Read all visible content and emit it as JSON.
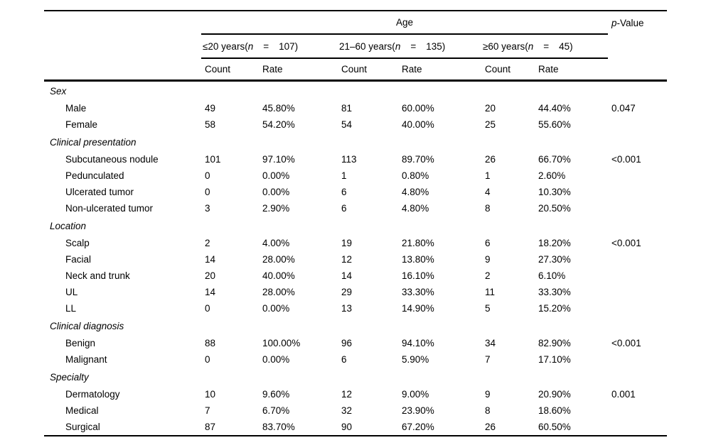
{
  "page": {
    "background": "#ffffff",
    "text_color": "#000000",
    "rule_color": "#000000"
  },
  "table": {
    "header": {
      "age_title": "Age",
      "p_value_italic": "p",
      "p_value_rest": "-Value",
      "age_groups": [
        {
          "pre": "≤20 years(",
          "n": "n",
          "eq": "=",
          "count": "107)"
        },
        {
          "pre": "21–60 years(",
          "n": "n",
          "eq": "=",
          "count": "135)"
        },
        {
          "pre": "≥60 years(",
          "n": "n",
          "eq": "=",
          "count": "45)"
        }
      ],
      "count_label": "Count",
      "rate_label": "Rate"
    },
    "sections": [
      {
        "title": "Sex",
        "rows": [
          {
            "label": "Male",
            "values": [
              "49",
              "45.80%",
              "81",
              "60.00%",
              "20",
              "44.40%"
            ],
            "p": "0.047"
          },
          {
            "label": "Female",
            "values": [
              "58",
              "54.20%",
              "54",
              "40.00%",
              "25",
              "55.60%"
            ],
            "p": ""
          }
        ]
      },
      {
        "title": "Clinical presentation",
        "rows": [
          {
            "label": "Subcutaneous nodule",
            "values": [
              "101",
              "97.10%",
              "113",
              "89.70%",
              "26",
              "66.70%"
            ],
            "p": "<0.001"
          },
          {
            "label": "Pedunculated",
            "values": [
              "0",
              "0.00%",
              "1",
              "0.80%",
              "1",
              "2.60%"
            ],
            "p": ""
          },
          {
            "label": "Ulcerated tumor",
            "values": [
              "0",
              "0.00%",
              "6",
              "4.80%",
              "4",
              "10.30%"
            ],
            "p": ""
          },
          {
            "label": "Non-ulcerated tumor",
            "values": [
              "3",
              "2.90%",
              "6",
              "4.80%",
              "8",
              "20.50%"
            ],
            "p": ""
          }
        ]
      },
      {
        "title": "Location",
        "rows": [
          {
            "label": "Scalp",
            "values": [
              "2",
              "4.00%",
              "19",
              "21.80%",
              "6",
              "18.20%"
            ],
            "p": "<0.001"
          },
          {
            "label": "Facial",
            "values": [
              "14",
              "28.00%",
              "12",
              "13.80%",
              "9",
              "27.30%"
            ],
            "p": ""
          },
          {
            "label": "Neck and trunk",
            "values": [
              "20",
              "40.00%",
              "14",
              "16.10%",
              "2",
              "6.10%"
            ],
            "p": ""
          },
          {
            "label": "UL",
            "values": [
              "14",
              "28.00%",
              "29",
              "33.30%",
              "11",
              "33.30%"
            ],
            "p": ""
          },
          {
            "label": "LL",
            "values": [
              "0",
              "0.00%",
              "13",
              "14.90%",
              "5",
              "15.20%"
            ],
            "p": ""
          }
        ]
      },
      {
        "title": "Clinical diagnosis",
        "rows": [
          {
            "label": "Benign",
            "values": [
              "88",
              "100.00%",
              "96",
              "94.10%",
              "34",
              "82.90%"
            ],
            "p": "<0.001"
          },
          {
            "label": "Malignant",
            "values": [
              "0",
              "0.00%",
              "6",
              "5.90%",
              "7",
              "17.10%"
            ],
            "p": ""
          }
        ]
      },
      {
        "title": "Specialty",
        "rows": [
          {
            "label": "Dermatology",
            "values": [
              "10",
              "9.60%",
              "12",
              "9.00%",
              "9",
              "20.90%"
            ],
            "p": "0.001"
          },
          {
            "label": "Medical",
            "values": [
              "7",
              "6.70%",
              "32",
              "23.90%",
              "8",
              "18.60%"
            ],
            "p": ""
          },
          {
            "label": "Surgical",
            "values": [
              "87",
              "83.70%",
              "90",
              "67.20%",
              "26",
              "60.50%"
            ],
            "p": ""
          }
        ]
      }
    ]
  }
}
